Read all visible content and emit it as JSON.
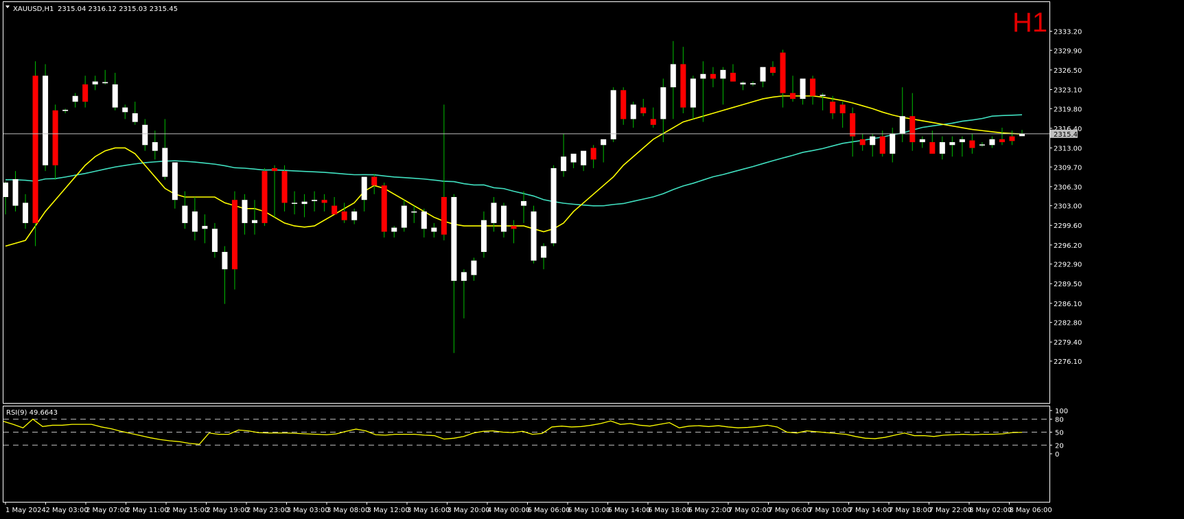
{
  "header": {
    "symbol": "XAUUSD,H1",
    "ohlc": "2315.04 2316.12 2315.03 2315.45",
    "timeframe": "H1"
  },
  "rsi_header": "RSI(9) 49.6643",
  "colors": {
    "background": "#000000",
    "bull_candle": "#ffffff",
    "bear_candle": "#ff0000",
    "wick_color": "#00c000",
    "ma_fast": "#ffff00",
    "ma_slow": "#40e0c0",
    "rsi_line": "#ffff00",
    "axis": "#ffffff",
    "price_line": "#c0c0c0",
    "price_label_bg": "#c0c0c0"
  },
  "chart_data": [
    {
      "type": "candlestick",
      "symbol": "XAUUSD",
      "timeframe": "H1",
      "current_price": 2315.45,
      "ylim": [
        2276.1,
        2333.2
      ],
      "y_ticks": [
        "2333.20",
        "2329.90",
        "2326.50",
        "2323.10",
        "2319.80",
        "2316.40",
        "2313.00",
        "2309.70",
        "2306.30",
        "2303.00",
        "2299.60",
        "2296.20",
        "2292.90",
        "2289.50",
        "2286.10",
        "2282.80",
        "2279.40",
        "2276.10"
      ],
      "x_labels": [
        "1 May 2024",
        "2 May 03:00",
        "2 May 07:00",
        "2 May 11:00",
        "2 May 15:00",
        "2 May 19:00",
        "2 May 23:00",
        "3 May 03:00",
        "3 May 08:00",
        "3 May 12:00",
        "3 May 16:00",
        "3 May 20:00",
        "4 May 00:00",
        "6 May 06:00",
        "6 May 10:00",
        "6 May 14:00",
        "6 May 18:00",
        "6 May 22:00",
        "7 May 02:00",
        "7 May 06:00",
        "7 May 10:00",
        "7 May 14:00",
        "7 May 18:00",
        "7 May 22:00",
        "8 May 02:00",
        "8 May 06:00"
      ],
      "candles": [
        {
          "o": 2304.5,
          "h": 2307.2,
          "l": 2301.5,
          "c": 2307.0
        },
        {
          "o": 2303.0,
          "h": 2309.0,
          "l": 2302.0,
          "c": 2307.6
        },
        {
          "o": 2300.0,
          "h": 2305.0,
          "l": 2299.0,
          "c": 2303.5
        },
        {
          "o": 2325.5,
          "h": 2328.0,
          "l": 2296.0,
          "c": 2300.0
        },
        {
          "o": 2310.0,
          "h": 2327.5,
          "l": 2309.0,
          "c": 2325.5
        },
        {
          "o": 2319.5,
          "h": 2320.5,
          "l": 2307.5,
          "c": 2310.0
        },
        {
          "o": 2319.4,
          "h": 2319.8,
          "l": 2319.0,
          "c": 2319.6
        },
        {
          "o": 2321.0,
          "h": 2322.5,
          "l": 2320.0,
          "c": 2322.0
        },
        {
          "o": 2324.0,
          "h": 2325.5,
          "l": 2320.0,
          "c": 2321.0
        },
        {
          "o": 2324.0,
          "h": 2325.5,
          "l": 2323.0,
          "c": 2324.5
        },
        {
          "o": 2324.2,
          "h": 2326.5,
          "l": 2324.0,
          "c": 2324.4
        },
        {
          "o": 2320.0,
          "h": 2326.0,
          "l": 2319.5,
          "c": 2324.0
        },
        {
          "o": 2319.2,
          "h": 2320.5,
          "l": 2318.0,
          "c": 2320.0
        },
        {
          "o": 2317.5,
          "h": 2321.0,
          "l": 2317.0,
          "c": 2319.0
        },
        {
          "o": 2313.5,
          "h": 2318.0,
          "l": 2312.5,
          "c": 2317.0
        },
        {
          "o": 2312.5,
          "h": 2316.0,
          "l": 2311.0,
          "c": 2314.0
        },
        {
          "o": 2308.0,
          "h": 2318.0,
          "l": 2307.5,
          "c": 2313.0
        },
        {
          "o": 2304.0,
          "h": 2310.0,
          "l": 2302.5,
          "c": 2310.5
        },
        {
          "o": 2300.0,
          "h": 2305.5,
          "l": 2299.0,
          "c": 2303.0
        },
        {
          "o": 2298.5,
          "h": 2304.5,
          "l": 2297.0,
          "c": 2302.0
        },
        {
          "o": 2299.0,
          "h": 2301.5,
          "l": 2296.5,
          "c": 2299.5
        },
        {
          "o": 2295.0,
          "h": 2300.0,
          "l": 2294.0,
          "c": 2299.0
        },
        {
          "o": 2292.0,
          "h": 2296.0,
          "l": 2286.0,
          "c": 2295.0
        },
        {
          "o": 2304.0,
          "h": 2305.5,
          "l": 2288.5,
          "c": 2292.0
        },
        {
          "o": 2300.0,
          "h": 2305.0,
          "l": 2298.0,
          "c": 2304.0
        },
        {
          "o": 2300.0,
          "h": 2304.0,
          "l": 2298.0,
          "c": 2300.5
        },
        {
          "o": 2309.0,
          "h": 2309.5,
          "l": 2299.5,
          "c": 2300.0
        },
        {
          "o": 2309.5,
          "h": 2310.0,
          "l": 2301.0,
          "c": 2309.0
        },
        {
          "o": 2309.0,
          "h": 2310.0,
          "l": 2302.0,
          "c": 2303.5
        },
        {
          "o": 2303.5,
          "h": 2305.5,
          "l": 2301.5,
          "c": 2303.5
        },
        {
          "o": 2303.3,
          "h": 2305.0,
          "l": 2301.0,
          "c": 2303.7
        },
        {
          "o": 2303.8,
          "h": 2305.5,
          "l": 2302.0,
          "c": 2304.0
        },
        {
          "o": 2304.0,
          "h": 2305.0,
          "l": 2302.0,
          "c": 2303.5
        },
        {
          "o": 2303.0,
          "h": 2304.5,
          "l": 2301.5,
          "c": 2301.5
        },
        {
          "o": 2302.0,
          "h": 2303.5,
          "l": 2300.0,
          "c": 2300.5
        },
        {
          "o": 2300.5,
          "h": 2302.5,
          "l": 2299.8,
          "c": 2302.0
        },
        {
          "o": 2304.0,
          "h": 2308.0,
          "l": 2302.0,
          "c": 2308.0
        },
        {
          "o": 2308.0,
          "h": 2308.5,
          "l": 2305.0,
          "c": 2306.5
        },
        {
          "o": 2306.5,
          "h": 2307.0,
          "l": 2297.5,
          "c": 2298.5
        },
        {
          "o": 2298.5,
          "h": 2299.5,
          "l": 2297.5,
          "c": 2299.2
        },
        {
          "o": 2299.2,
          "h": 2304.0,
          "l": 2298.5,
          "c": 2303.0
        },
        {
          "o": 2302.0,
          "h": 2303.0,
          "l": 2300.0,
          "c": 2302.0
        },
        {
          "o": 2299.0,
          "h": 2302.5,
          "l": 2297.5,
          "c": 2302.0
        },
        {
          "o": 2298.5,
          "h": 2300.0,
          "l": 2297.5,
          "c": 2299.2
        },
        {
          "o": 2304.5,
          "h": 2320.5,
          "l": 2297.0,
          "c": 2298.0
        },
        {
          "o": 2290.0,
          "h": 2305.0,
          "l": 2277.5,
          "c": 2304.5
        },
        {
          "o": 2290.0,
          "h": 2292.0,
          "l": 2283.5,
          "c": 2291.5
        },
        {
          "o": 2291.0,
          "h": 2294.0,
          "l": 2290.0,
          "c": 2293.5
        },
        {
          "o": 2295.0,
          "h": 2302.0,
          "l": 2294.0,
          "c": 2300.5
        },
        {
          "o": 2300.0,
          "h": 2304.5,
          "l": 2298.5,
          "c": 2303.5
        },
        {
          "o": 2298.5,
          "h": 2303.5,
          "l": 2297.5,
          "c": 2303.0
        },
        {
          "o": 2299.5,
          "h": 2300.5,
          "l": 2296.5,
          "c": 2299.0
        },
        {
          "o": 2303.0,
          "h": 2305.5,
          "l": 2300.0,
          "c": 2303.8
        },
        {
          "o": 2293.5,
          "h": 2303.0,
          "l": 2293.0,
          "c": 2302.0
        },
        {
          "o": 2294.0,
          "h": 2296.5,
          "l": 2292.0,
          "c": 2296.0
        },
        {
          "o": 2296.5,
          "h": 2310.0,
          "l": 2296.0,
          "c": 2309.5
        },
        {
          "o": 2309.0,
          "h": 2315.5,
          "l": 2308.0,
          "c": 2311.5
        },
        {
          "o": 2310.5,
          "h": 2312.0,
          "l": 2309.5,
          "c": 2312.0
        },
        {
          "o": 2310.0,
          "h": 2312.0,
          "l": 2309.0,
          "c": 2312.5
        },
        {
          "o": 2313.0,
          "h": 2313.5,
          "l": 2309.5,
          "c": 2311.0
        },
        {
          "o": 2313.5,
          "h": 2314.5,
          "l": 2310.5,
          "c": 2314.5
        },
        {
          "o": 2314.5,
          "h": 2323.5,
          "l": 2314.0,
          "c": 2323.0
        },
        {
          "o": 2323.0,
          "h": 2323.5,
          "l": 2317.0,
          "c": 2318.0
        },
        {
          "o": 2318.0,
          "h": 2321.0,
          "l": 2316.5,
          "c": 2320.5
        },
        {
          "o": 2320.0,
          "h": 2321.5,
          "l": 2318.5,
          "c": 2319.0
        },
        {
          "o": 2318.0,
          "h": 2320.0,
          "l": 2316.5,
          "c": 2317.0
        },
        {
          "o": 2318.0,
          "h": 2325.0,
          "l": 2314.0,
          "c": 2323.5
        },
        {
          "o": 2323.5,
          "h": 2331.5,
          "l": 2318.0,
          "c": 2327.5
        },
        {
          "o": 2327.5,
          "h": 2330.5,
          "l": 2319.0,
          "c": 2320.0
        },
        {
          "o": 2320.0,
          "h": 2325.5,
          "l": 2318.0,
          "c": 2325.0
        },
        {
          "o": 2325.0,
          "h": 2328.0,
          "l": 2317.5,
          "c": 2325.8
        },
        {
          "o": 2325.8,
          "h": 2327.0,
          "l": 2323.5,
          "c": 2325.0
        },
        {
          "o": 2325.0,
          "h": 2327.0,
          "l": 2320.5,
          "c": 2326.5
        },
        {
          "o": 2326.0,
          "h": 2327.5,
          "l": 2324.5,
          "c": 2324.5
        },
        {
          "o": 2324.0,
          "h": 2324.5,
          "l": 2323.0,
          "c": 2324.3
        },
        {
          "o": 2324.0,
          "h": 2324.5,
          "l": 2323.7,
          "c": 2324.2
        },
        {
          "o": 2324.5,
          "h": 2327.0,
          "l": 2323.5,
          "c": 2327.0
        },
        {
          "o": 2327.0,
          "h": 2328.0,
          "l": 2325.5,
          "c": 2326.0
        },
        {
          "o": 2329.5,
          "h": 2330.0,
          "l": 2320.0,
          "c": 2322.5
        },
        {
          "o": 2322.5,
          "h": 2325.5,
          "l": 2321.0,
          "c": 2321.5
        },
        {
          "o": 2321.5,
          "h": 2325.0,
          "l": 2320.5,
          "c": 2325.0
        },
        {
          "o": 2325.0,
          "h": 2325.5,
          "l": 2320.5,
          "c": 2322.0
        },
        {
          "o": 2322.0,
          "h": 2322.5,
          "l": 2319.5,
          "c": 2322.2
        },
        {
          "o": 2321.0,
          "h": 2322.0,
          "l": 2318.0,
          "c": 2319.0
        },
        {
          "o": 2320.5,
          "h": 2321.0,
          "l": 2316.5,
          "c": 2319.0
        },
        {
          "o": 2319.0,
          "h": 2320.0,
          "l": 2311.5,
          "c": 2315.0
        },
        {
          "o": 2314.5,
          "h": 2315.5,
          "l": 2312.5,
          "c": 2313.5
        },
        {
          "o": 2313.5,
          "h": 2315.5,
          "l": 2311.5,
          "c": 2315.0
        },
        {
          "o": 2315.0,
          "h": 2316.0,
          "l": 2311.5,
          "c": 2312.0
        },
        {
          "o": 2312.0,
          "h": 2316.5,
          "l": 2310.5,
          "c": 2315.5
        },
        {
          "o": 2315.5,
          "h": 2323.5,
          "l": 2314.0,
          "c": 2318.5
        },
        {
          "o": 2318.5,
          "h": 2322.5,
          "l": 2312.5,
          "c": 2314.0
        },
        {
          "o": 2314.0,
          "h": 2315.0,
          "l": 2313.0,
          "c": 2314.5
        },
        {
          "o": 2314.0,
          "h": 2316.0,
          "l": 2312.0,
          "c": 2312.0
        },
        {
          "o": 2312.0,
          "h": 2315.0,
          "l": 2311.0,
          "c": 2314.0
        },
        {
          "o": 2313.5,
          "h": 2315.0,
          "l": 2311.5,
          "c": 2314.0
        },
        {
          "o": 2314.0,
          "h": 2315.0,
          "l": 2311.5,
          "c": 2314.5
        },
        {
          "o": 2314.3,
          "h": 2315.5,
          "l": 2312.0,
          "c": 2313.0
        },
        {
          "o": 2313.5,
          "h": 2314.0,
          "l": 2313.2,
          "c": 2313.6
        },
        {
          "o": 2313.5,
          "h": 2315.0,
          "l": 2313.0,
          "c": 2314.5
        },
        {
          "o": 2314.5,
          "h": 2316.5,
          "l": 2313.5,
          "c": 2314.0
        },
        {
          "o": 2315.0,
          "h": 2316.0,
          "l": 2313.5,
          "c": 2314.2
        },
        {
          "o": 2315.04,
          "h": 2316.12,
          "l": 2315.03,
          "c": 2315.45
        }
      ],
      "ma_fast": [
        2296.0,
        2296.5,
        2297.0,
        2299.5,
        2302.0,
        2304.0,
        2306.0,
        2308.0,
        2310.0,
        2311.5,
        2312.5,
        2313.0,
        2313.0,
        2312.0,
        2310.0,
        2308.0,
        2306.0,
        2305.0,
        2304.5,
        2304.5,
        2304.5,
        2304.5,
        2303.5,
        2303.0,
        2302.5,
        2302.5,
        2302.0,
        2301.0,
        2300.0,
        2299.5,
        2299.3,
        2299.5,
        2300.5,
        2301.5,
        2302.5,
        2303.5,
        2305.5,
        2306.5,
        2306.0,
        2305.0,
        2304.0,
        2303.0,
        2302.0,
        2301.0,
        2300.3,
        2299.8,
        2299.5,
        2299.5,
        2299.5,
        2299.5,
        2299.5,
        2299.5,
        2299.5,
        2299.0,
        2298.5,
        2299.0,
        2300.0,
        2302.0,
        2303.5,
        2305.0,
        2306.5,
        2308.0,
        2310.0,
        2311.5,
        2313.0,
        2314.5,
        2315.5,
        2316.5,
        2317.5,
        2318.0,
        2318.5,
        2319.0,
        2319.5,
        2320.0,
        2320.5,
        2321.0,
        2321.5,
        2321.8,
        2322.0,
        2322.0,
        2322.0,
        2322.0,
        2321.8,
        2321.5,
        2321.2,
        2320.8,
        2320.3,
        2319.8,
        2319.2,
        2318.7,
        2318.3,
        2318.0,
        2317.7,
        2317.4,
        2317.1,
        2316.8,
        2316.5,
        2316.2,
        2316.0,
        2315.8,
        2315.6,
        2315.5,
        2315.4
      ]
    },
    {
      "type": "line",
      "indicator": "RSI(9)",
      "value": 49.6643,
      "ylim": [
        0,
        100
      ],
      "levels": [
        20,
        50,
        80
      ],
      "y_ticks": [
        "100",
        "80",
        "50",
        "20",
        "0"
      ],
      "values": [
        75,
        68,
        60,
        80,
        63,
        66,
        66,
        68,
        68,
        68,
        62,
        58,
        52,
        47,
        42,
        37,
        33,
        30,
        28,
        24,
        22,
        48,
        45,
        45,
        55,
        53,
        49,
        48,
        48,
        48,
        47,
        46,
        45,
        44,
        46,
        52,
        57,
        53,
        44,
        43,
        45,
        45,
        45,
        43,
        42,
        34,
        36,
        40,
        48,
        52,
        53,
        50,
        49,
        52,
        45,
        47,
        62,
        64,
        62,
        63,
        66,
        70,
        76,
        68,
        70,
        66,
        64,
        68,
        72,
        60,
        64,
        65,
        63,
        65,
        62,
        60,
        61,
        63,
        66,
        62,
        50,
        48,
        53,
        51,
        49,
        47,
        45,
        40,
        36,
        35,
        38,
        43,
        48,
        42,
        42,
        40,
        43,
        44,
        45,
        44,
        45,
        45,
        46,
        49,
        49.66
      ]
    }
  ]
}
